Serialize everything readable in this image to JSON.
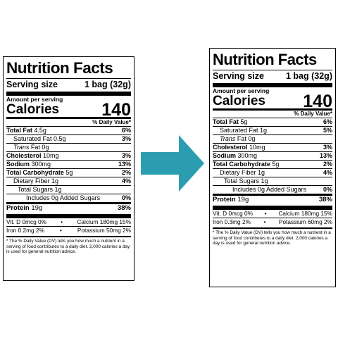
{
  "left": {
    "title": "Nutrition Facts",
    "serving_label": "Serving size",
    "serving_value": "1 bag (32g)",
    "amount_per_serving": "Amount per serving",
    "calories_label": "Calories",
    "calories_value": "140",
    "dv_header": "% Daily Value*",
    "total_fat": {
      "label": "Total Fat",
      "amount": "4.5g",
      "dv": "6%"
    },
    "saturated_fat": {
      "label": "Saturated Fat 0.5g",
      "dv": "3%"
    },
    "trans_fat": {
      "label_italic": "Trans",
      "label_rest": " Fat 0g"
    },
    "cholesterol": {
      "label": "Cholesterol",
      "amount": "10mg",
      "dv": "3%"
    },
    "sodium": {
      "label": "Sodium",
      "amount": "300mg",
      "dv": "13%"
    },
    "total_carb": {
      "label": "Total Carbohydrate",
      "amount": "5g",
      "dv": "2%"
    },
    "fiber": {
      "label": "Dietary Fiber 1g",
      "dv": "4%"
    },
    "total_sugars": {
      "label": "Total Sugars 1g"
    },
    "added_sugars": {
      "label": "Includes 0g Added Sugars",
      "dv": "0%"
    },
    "protein": {
      "label": "Protein",
      "amount": "19g",
      "dv": "38%"
    },
    "vit_d": "Vit. D 0mcg 0%",
    "calcium": "Calcium 180mg 15%",
    "iron": "Iron 0.2mg 2%",
    "potassium": "Potassium 50mg 2%",
    "bullet": "•",
    "footnote": "* The % Daily Value (DV) tells you how much a nutrient in a serving of food contributes to a daily diet. 2,000 calories a day is used for general nutrition advice."
  },
  "right": {
    "title": "Nutrition Facts",
    "serving_label": "Serving size",
    "serving_value": "1 bag (32g)",
    "amount_per_serving": "Amount per serving",
    "calories_label": "Calories",
    "calories_value": "140",
    "dv_header": "% Daily Value*",
    "total_fat": {
      "label": "Total Fat",
      "amount": "5g",
      "dv": "6%"
    },
    "saturated_fat": {
      "label": "Saturated Fat 1g",
      "dv": "5%"
    },
    "trans_fat": {
      "label_italic": "Trans",
      "label_rest": " Fat 0g"
    },
    "cholesterol": {
      "label": "Cholesterol",
      "amount": "10mg",
      "dv": "3%"
    },
    "sodium": {
      "label": "Sodium",
      "amount": "300mg",
      "dv": "13%"
    },
    "total_carb": {
      "label": "Total Carbohydrate",
      "amount": "5g",
      "dv": "2%"
    },
    "fiber": {
      "label": "Dietary Fiber 1g",
      "dv": "4%"
    },
    "total_sugars": {
      "label": "Total Sugars 1g"
    },
    "added_sugars": {
      "label": "Includes 0g Added Sugars",
      "dv": "0%"
    },
    "protein": {
      "label": "Protein",
      "amount": "19g",
      "dv": "38%"
    },
    "vit_d": "Vit. D 0mcg 0%",
    "calcium": "Calcium 180mg 15%",
    "iron": "Iron 0.3mg 2%",
    "potassium": "Potassium 60mg 2%",
    "bullet": "•",
    "footnote": "* The % Daily Value (DV) tells you how much a nutrient in a serving of food contributes to a daily diet. 2,000 calories a day is used for general nutrition advice."
  },
  "arrow": {
    "icon": "arrow-right-icon",
    "color": "#2a9db0"
  }
}
